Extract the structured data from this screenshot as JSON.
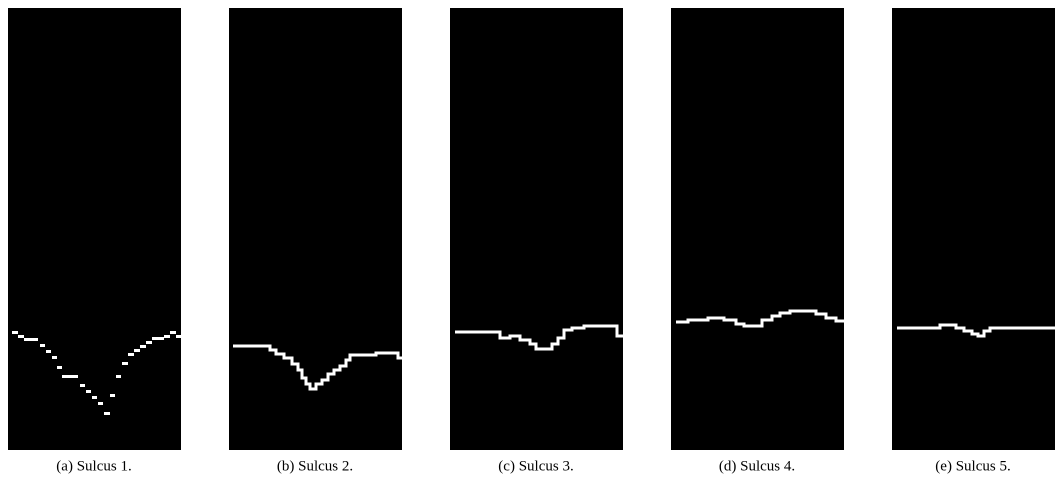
{
  "captions": [
    "(a) Sulcus 1.",
    "(b) Sulcus 2.",
    "(c) Sulcus 3.",
    "(d) Sulcus 4.",
    "(e) Sulcus 5."
  ]
}
